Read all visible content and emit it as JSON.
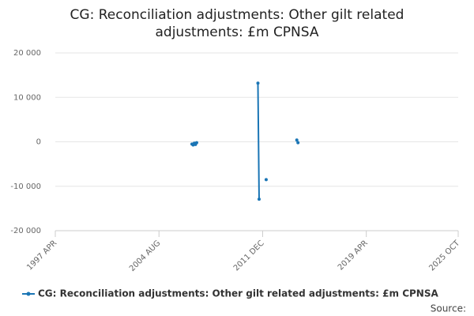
{
  "chart_data": {
    "type": "line",
    "title": "CG: Reconciliation adjustments: Other gilt related adjustments: £m CPNSA",
    "x": [
      "2006 DEC",
      "2007 JAN",
      "2007 FEB",
      "2007 MAR",
      "2007 APR",
      "2007 MAY",
      "2011 AUG",
      "2011 SEP",
      "2011 OCT",
      "2012 MAR",
      "2012 APR",
      "2014 MAY",
      "2014 JUN"
    ],
    "series": [
      {
        "name": "CG: Reconciliation adjustments: Other gilt related adjustments: £m CPNSA",
        "color": "#1a75b5",
        "values": [
          -500,
          -700,
          -300,
          -600,
          -200,
          null,
          13200,
          -12900,
          null,
          -8500,
          null,
          400,
          -200
        ]
      }
    ],
    "xlim": [
      "1997 APR",
      "2025 OCT"
    ],
    "xticks": [
      "1997 APR",
      "2004 AUG",
      "2011 DEC",
      "2019 APR",
      "2025 OCT"
    ],
    "ylim": [
      -20000,
      20000
    ],
    "yticks": [
      {
        "value": -20000,
        "label": "-20 000"
      },
      {
        "value": -10000,
        "label": "-10 000"
      },
      0,
      {
        "value": 10000,
        "label": "10 000"
      },
      {
        "value": 20000,
        "label": "20 000"
      }
    ],
    "grid": true,
    "source": "Source:"
  }
}
